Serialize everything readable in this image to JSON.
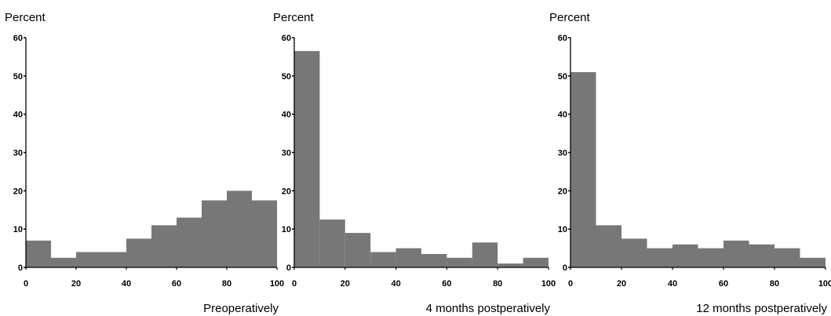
{
  "chart_data": [
    {
      "type": "bar",
      "ylabel": "Percent",
      "xlabel": "Preoperatively",
      "bin_edges": [
        0,
        10,
        20,
        30,
        40,
        50,
        60,
        70,
        80,
        90,
        100
      ],
      "values": [
        7,
        2.5,
        4,
        4,
        7.5,
        11,
        13,
        17.5,
        20,
        17.5
      ],
      "xlim": [
        0,
        100
      ],
      "ylim": [
        0,
        60
      ],
      "xticks": [
        0,
        20,
        40,
        60,
        80,
        100
      ],
      "yticks": [
        0,
        10,
        20,
        30,
        40,
        50,
        60
      ],
      "bar_color": "#777777"
    },
    {
      "type": "bar",
      "ylabel": "Percent",
      "xlabel": "4 months postperatively",
      "bin_edges": [
        0,
        10,
        20,
        30,
        40,
        50,
        60,
        70,
        80,
        90,
        100
      ],
      "values": [
        56.5,
        12.5,
        9,
        4,
        5,
        3.5,
        2.5,
        6.5,
        1,
        2.5
      ],
      "xlim": [
        0,
        100
      ],
      "ylim": [
        0,
        60
      ],
      "xticks": [
        0,
        20,
        40,
        60,
        80,
        100
      ],
      "yticks": [
        0,
        10,
        20,
        30,
        40,
        50,
        60
      ],
      "bar_color": "#777777"
    },
    {
      "type": "bar",
      "ylabel": "Percent",
      "xlabel": "12 months postperatively",
      "bin_edges": [
        0,
        10,
        20,
        30,
        40,
        50,
        60,
        70,
        80,
        90,
        100
      ],
      "values": [
        51,
        11,
        7.5,
        5,
        6,
        5,
        7,
        6,
        5,
        2.5
      ],
      "xlim": [
        0,
        100
      ],
      "ylim": [
        0,
        60
      ],
      "xticks": [
        0,
        20,
        40,
        60,
        80,
        100
      ],
      "yticks": [
        0,
        10,
        20,
        30,
        40,
        50,
        60
      ],
      "bar_color": "#777777"
    }
  ]
}
